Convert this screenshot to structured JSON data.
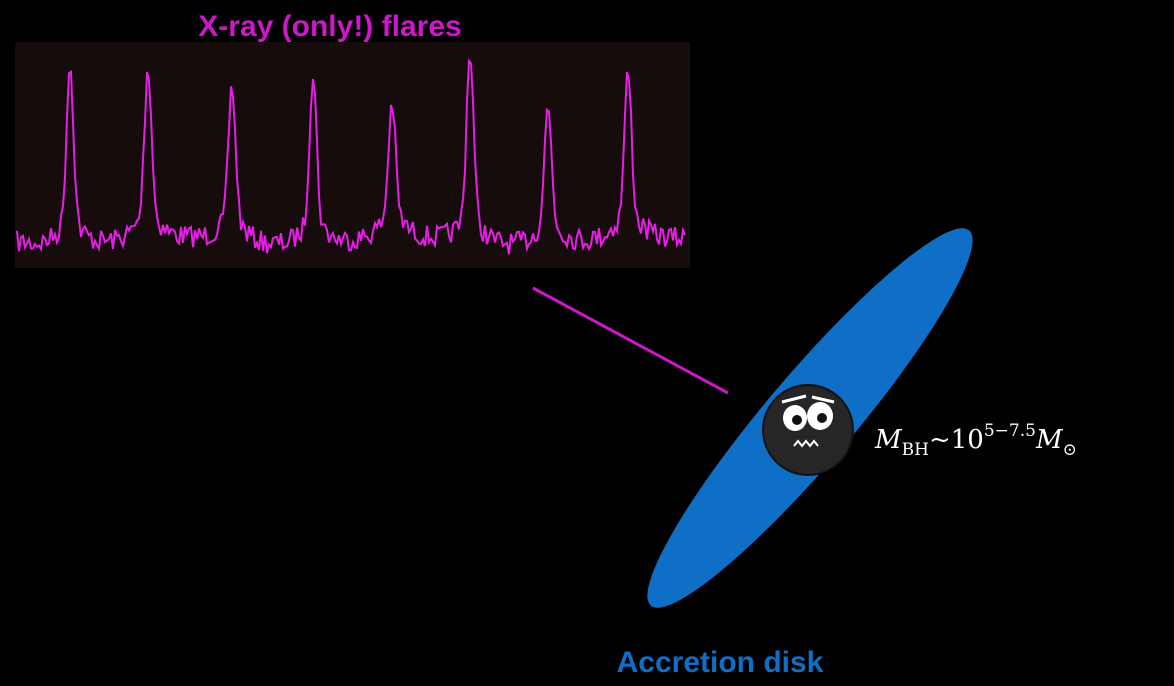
{
  "flare_label": "X-ray (only!) flares",
  "disk_label": "Accretion disk",
  "formula": {
    "symbol": "M",
    "subscript": "BH",
    "tilde": "~",
    "base": "10",
    "exponent": "5−7.5",
    "sun_symbol": "M",
    "sun_subscript": "⊙"
  }
}
